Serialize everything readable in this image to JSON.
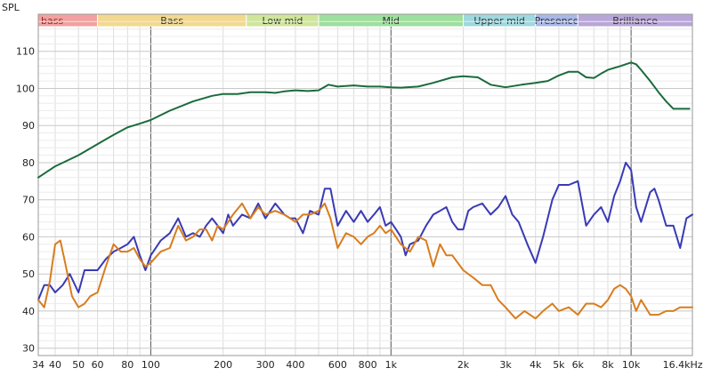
{
  "chart_data": {
    "type": "line",
    "ylabel": "SPL",
    "xlabel_unit": "kHz",
    "x_scale": "log",
    "xlim": [
      34,
      18000
    ],
    "ylim": [
      28,
      120
    ],
    "grid": true,
    "x_ticks": [
      {
        "v": 34,
        "label": "34"
      },
      {
        "v": 40,
        "label": "40"
      },
      {
        "v": 50,
        "label": "50"
      },
      {
        "v": 60,
        "label": "60"
      },
      {
        "v": 80,
        "label": "80"
      },
      {
        "v": 100,
        "label": "100"
      },
      {
        "v": 200,
        "label": "200"
      },
      {
        "v": 300,
        "label": "300"
      },
      {
        "v": 400,
        "label": "400"
      },
      {
        "v": 600,
        "label": "600"
      },
      {
        "v": 800,
        "label": "800"
      },
      {
        "v": 1000,
        "label": "1k"
      },
      {
        "v": 2000,
        "label": "2k"
      },
      {
        "v": 3000,
        "label": "3k"
      },
      {
        "v": 4000,
        "label": "4k"
      },
      {
        "v": 5000,
        "label": "5k"
      },
      {
        "v": 6000,
        "label": "6k"
      },
      {
        "v": 8000,
        "label": "8k"
      },
      {
        "v": 10000,
        "label": "10k"
      },
      {
        "v": 16400,
        "label": "16.4kHz"
      }
    ],
    "y_ticks": [
      30,
      40,
      50,
      60,
      70,
      80,
      90,
      100,
      110
    ],
    "bands": [
      {
        "label": "bass",
        "from": 34,
        "to": 60,
        "color": "#f4a0a0"
      },
      {
        "label": "Bass",
        "from": 60,
        "to": 250,
        "color": "#f2d98f"
      },
      {
        "label": "Low mid",
        "from": 250,
        "to": 500,
        "color": "#cfe69a"
      },
      {
        "label": "Mid",
        "from": 500,
        "to": 2000,
        "color": "#9ddf9d"
      },
      {
        "label": "Upper mid",
        "from": 2000,
        "to": 4000,
        "color": "#9fd8df"
      },
      {
        "label": "Presence",
        "from": 4000,
        "to": 6000,
        "color": "#a9b8e8"
      },
      {
        "label": "Brilliance",
        "from": 6000,
        "to": 18000,
        "color": "#b8a6d8"
      }
    ],
    "series": [
      {
        "color": "#1a6b3c",
        "x": [
          34,
          40,
          50,
          60,
          70,
          80,
          90,
          100,
          120,
          150,
          180,
          200,
          230,
          260,
          300,
          330,
          360,
          400,
          450,
          500,
          550,
          600,
          700,
          800,
          900,
          1000,
          1100,
          1300,
          1500,
          1800,
          2000,
          2300,
          2600,
          3000,
          3500,
          4000,
          4500,
          5000,
          5500,
          6000,
          6500,
          7000,
          7500,
          8000,
          9000,
          10000,
          10500,
          11000,
          12000,
          13000,
          14000,
          15000,
          16400,
          17500
        ],
        "values": [
          76,
          79,
          82,
          85,
          87.5,
          89.5,
          90.5,
          91.5,
          94,
          96.5,
          98,
          98.5,
          98.5,
          99,
          99,
          98.8,
          99.2,
          99.5,
          99.3,
          99.5,
          101,
          100.5,
          100.8,
          100.5,
          100.5,
          100.3,
          100.2,
          100.5,
          101.5,
          103,
          103.3,
          103,
          101,
          100.3,
          101,
          101.5,
          102,
          103.5,
          104.5,
          104.5,
          103,
          102.8,
          104,
          105,
          106,
          107,
          106.5,
          105,
          102,
          99,
          96.5,
          94.5,
          94.5,
          94.5
        ]
      },
      {
        "color": "#3a3ab4",
        "x": [
          34,
          36,
          38,
          40,
          43,
          46,
          50,
          53,
          56,
          60,
          65,
          70,
          75,
          80,
          85,
          90,
          95,
          100,
          110,
          120,
          130,
          140,
          150,
          160,
          170,
          180,
          190,
          200,
          210,
          220,
          240,
          260,
          280,
          300,
          330,
          360,
          380,
          400,
          430,
          460,
          500,
          530,
          560,
          600,
          650,
          700,
          750,
          800,
          850,
          900,
          950,
          1000,
          1050,
          1100,
          1150,
          1200,
          1300,
          1400,
          1500,
          1600,
          1700,
          1800,
          1900,
          2000,
          2100,
          2200,
          2400,
          2600,
          2800,
          3000,
          3200,
          3400,
          3700,
          4000,
          4300,
          4700,
          5000,
          5500,
          6000,
          6500,
          7000,
          7500,
          8000,
          8500,
          9000,
          9500,
          10000,
          10500,
          11000,
          12000,
          12500,
          13000,
          14000,
          15000,
          16000,
          17000,
          18000
        ],
        "values": [
          43,
          47,
          47,
          45,
          47,
          50,
          45,
          51,
          51,
          51,
          54,
          56,
          57,
          58,
          60,
          55,
          51,
          55,
          59,
          61,
          65,
          60,
          61,
          60,
          63,
          65,
          63,
          61,
          66,
          63,
          66,
          65,
          69,
          65,
          69,
          66,
          65,
          65,
          61,
          67,
          66,
          73,
          73,
          63,
          67,
          64,
          67,
          64,
          66,
          68,
          63,
          64,
          62,
          60,
          55,
          58,
          59,
          63,
          66,
          67,
          68,
          64,
          62,
          62,
          67,
          68,
          69,
          66,
          68,
          71,
          66,
          64,
          58,
          53,
          60,
          70,
          74,
          74,
          75,
          63,
          66,
          68,
          64,
          71,
          75,
          80,
          78,
          68,
          64,
          72,
          73,
          70,
          63,
          63,
          57,
          65,
          66
        ]
      },
      {
        "color": "#d87d1e",
        "x": [
          34,
          36,
          38,
          40,
          42,
          44,
          47,
          50,
          53,
          56,
          60,
          65,
          70,
          75,
          80,
          85,
          90,
          95,
          100,
          110,
          120,
          130,
          140,
          150,
          160,
          170,
          180,
          190,
          200,
          210,
          220,
          240,
          260,
          280,
          300,
          330,
          360,
          380,
          400,
          430,
          460,
          500,
          530,
          560,
          600,
          650,
          700,
          750,
          800,
          850,
          900,
          950,
          1000,
          1100,
          1200,
          1300,
          1400,
          1500,
          1600,
          1700,
          1800,
          2000,
          2200,
          2400,
          2600,
          2800,
          3000,
          3300,
          3600,
          4000,
          4300,
          4700,
          5000,
          5500,
          6000,
          6500,
          7000,
          7500,
          8000,
          8500,
          9000,
          9500,
          10000,
          10500,
          11000,
          12000,
          13000,
          14000,
          15000,
          16000,
          17000,
          18000
        ],
        "values": [
          43,
          41,
          48,
          58,
          59,
          53,
          44,
          41,
          42,
          44,
          45,
          52,
          58,
          56,
          56,
          57,
          54,
          52,
          53,
          56,
          57,
          63,
          59,
          60,
          62,
          62,
          59,
          63,
          62,
          64,
          66,
          69,
          65,
          68,
          66,
          67,
          66,
          65,
          64,
          66,
          66,
          67,
          69,
          65,
          57,
          61,
          60,
          58,
          60,
          61,
          63,
          61,
          62,
          58,
          56,
          60,
          59,
          52,
          58,
          55,
          55,
          51,
          49,
          47,
          47,
          43,
          41,
          38,
          40,
          38,
          40,
          42,
          40,
          41,
          39,
          42,
          42,
          41,
          43,
          46,
          47,
          46,
          44,
          40,
          43,
          39,
          39,
          40,
          40,
          41,
          41,
          41
        ]
      }
    ]
  }
}
